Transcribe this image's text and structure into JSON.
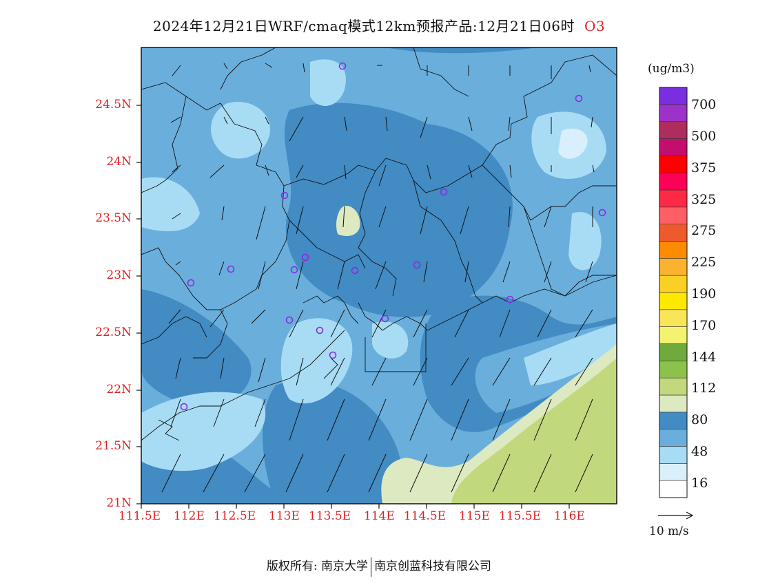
{
  "header": {
    "title": "2024年12月21日WRF/cmaq模式12km预报产品:12月21日06时",
    "species": "O3"
  },
  "map": {
    "lat_labels": [
      "24.5N",
      "24N",
      "23.5N",
      "23N",
      "22.5N",
      "22N",
      "21.5N",
      "21N"
    ],
    "lon_labels": [
      "111.5E",
      "112E",
      "112.5E",
      "113E",
      "113.5E",
      "114E",
      "114.5E",
      "115E",
      "115.5E",
      "116E"
    ]
  },
  "colorbar": {
    "unit": "(ug/m3)",
    "colors": [
      "#ffffff",
      "#d9effb",
      "#a8dcf5",
      "#6aaedc",
      "#428bc3",
      "#dde9c0",
      "#c1d87c",
      "#8cc24b",
      "#6fab3c",
      "#f4f36f",
      "#f8e658",
      "#fde800",
      "#fbd024",
      "#fbb22e",
      "#fb8c00",
      "#ee5a2b",
      "#fe5f66",
      "#fd2945",
      "#fe0058",
      "#fe0000",
      "#c40e6e",
      "#ad2d5d",
      "#9c32c8",
      "#7a2ee0"
    ],
    "labels": [
      "16",
      "48",
      "80",
      "112",
      "144",
      "170",
      "190",
      "225",
      "275",
      "325",
      "375",
      "500",
      "700"
    ]
  },
  "wind_legend": {
    "label": "10 m/s"
  },
  "footer": {
    "copyright": "版权所有: 南京大学",
    "company": "南京创蓝科技有限公司"
  }
}
